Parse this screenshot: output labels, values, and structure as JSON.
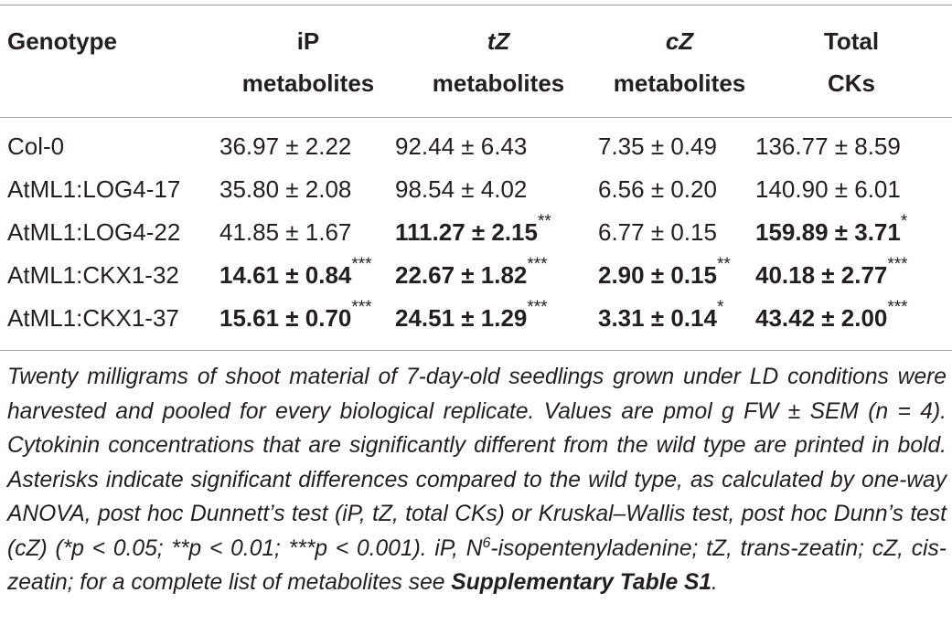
{
  "header": {
    "genotype": "Genotype",
    "ip_line1": "iP",
    "ip_line2": "metabolites",
    "tz_line1": "tZ",
    "tz_line2": "metabolites",
    "cz_line1": "cZ",
    "cz_line2": "metabolites",
    "total_line1": "Total",
    "total_line2": "CKs"
  },
  "rows": [
    {
      "genotype": "Col-0",
      "ip": "36.97 ± 2.22",
      "ip_sig": "",
      "tz": "92.44 ± 6.43",
      "tz_sig": "",
      "cz": "7.35 ± 0.49",
      "cz_sig": "",
      "total": "136.77 ± 8.59",
      "total_sig": ""
    },
    {
      "genotype": "AtML1:LOG4-17",
      "ip": "35.80 ± 2.08",
      "ip_sig": "",
      "tz": "98.54 ± 4.02",
      "tz_sig": "",
      "cz": "6.56 ± 0.20",
      "cz_sig": "",
      "total": "140.90 ± 6.01",
      "total_sig": ""
    },
    {
      "genotype": "AtML1:LOG4-22",
      "ip": "41.85 ± 1.67",
      "ip_sig": "",
      "tz": "111.27 ± 2.15",
      "tz_sig": "**",
      "cz": "6.77 ± 0.15",
      "cz_sig": "",
      "total": "159.89 ± 3.71",
      "total_sig": "*"
    },
    {
      "genotype": "AtML1:CKX1-32",
      "ip": "14.61 ± 0.84",
      "ip_sig": "***",
      "tz": "22.67 ± 1.82",
      "tz_sig": "***",
      "cz": "2.90 ± 0.15",
      "cz_sig": "**",
      "total": "40.18 ± 2.77",
      "total_sig": "***"
    },
    {
      "genotype": "AtML1:CKX1-37",
      "ip": "15.61 ± 0.70",
      "ip_sig": "***",
      "tz": "24.51 ± 1.29",
      "tz_sig": "***",
      "cz": "3.31 ± 0.14",
      "cz_sig": "*",
      "total": "43.42 ± 2.00",
      "total_sig": "***"
    }
  ],
  "caption": {
    "text_part1": "Twenty milligrams of shoot material of 7-day-old seedlings grown under LD conditions were harvested and pooled for every biological replicate. Values are pmol g FW ± SEM (n = 4). Cytokinin concentrations that are significantly different from the wild type are printed in bold. Asterisks indicate significant differences compared to the wild type, as calculated by one-way ANOVA, post hoc Dunnett’s test (iP, tZ, total CKs) or Kruskal–Wallis test, post hoc Dunn’s test (cZ) (*p < 0.05; **p < 0.01; ***p < 0.001). iP, N",
    "superscript": "6",
    "text_part2": "-isopentenyladenine; tZ, trans-zeatin; cZ, cis-zeatin; for a complete list of metabolites see ",
    "link_text": "Supplementary Table S1",
    "text_end": "."
  }
}
